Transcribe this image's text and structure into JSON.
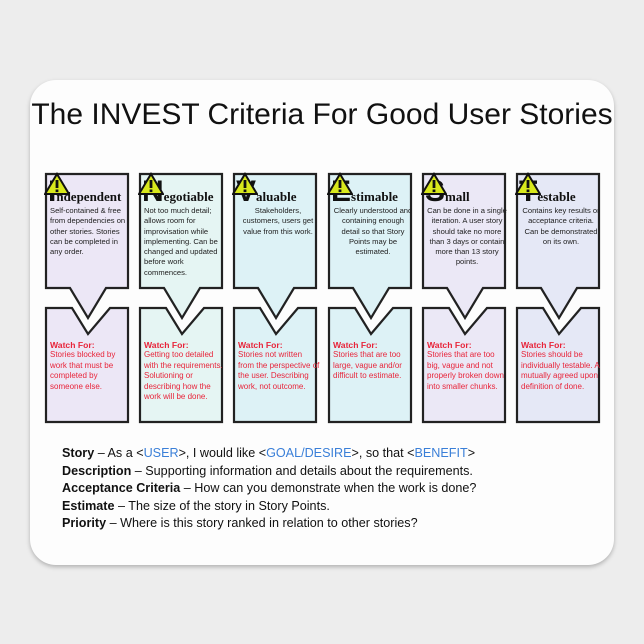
{
  "title": "The INVEST Criteria For Good User Stories",
  "criteria": [
    {
      "letter": "I",
      "rest": "ndependent",
      "color": "#ece7f6",
      "desc": "Self-contained & free from dependencies on other stories. Stories can be completed in any order.",
      "warn_label": "Watch For:",
      "warn": "Stories blocked by work that must be completed by someone else."
    },
    {
      "letter": "N",
      "rest": "egotiable",
      "color": "#e5f5f3",
      "desc": "Not too much detail; allows room for improvisation while implementing. Can be changed and updated before work commences.",
      "warn_label": "Watch For:",
      "warn": "Getting too detailed with the requirements. Solutioning or describing how the work will be done."
    },
    {
      "letter": "V",
      "rest": "aluable",
      "color": "#ddf2f6",
      "desc": "Stakeholders, customers, users get value from this work.",
      "warn_label": "Watch For:",
      "warn": "Stories not written from the perspective of the user.  Describing work, not outcome."
    },
    {
      "letter": "E",
      "rest": "stimable",
      "color": "#ddf2f6",
      "desc": "Clearly understood and containing enough detail so that Story Points may be estimated.",
      "warn_label": "Watch For:",
      "warn": "Stories that are too large, vague and/or difficult to estimate."
    },
    {
      "letter": "S",
      "rest": "mall",
      "color": "#ebe8f6",
      "desc": "Can be done in a single iteration. A user story should take no more than 3 days or contain more than 13 story points.",
      "warn_label": "Watch For:",
      "warn": "Stories that are too big, vague and not properly broken down into smaller chunks."
    },
    {
      "letter": "T",
      "rest": "estable",
      "color": "#e5e8f6",
      "desc": "Contains key results or acceptance criteria. Can be demonstrated on its own.",
      "warn_label": "Watch For:",
      "warn": "Stories should be individually testable.  A mutually agreed upon definition of done."
    }
  ],
  "definitions": {
    "story_term": "Story",
    "story_a": " – As a <",
    "story_user": "USER",
    "story_b": ">, I would like <",
    "story_goal": "GOAL/DESIRE",
    "story_c": ">, so that <",
    "story_benefit": "BENEFIT",
    "story_d": ">",
    "desc_term": "Description",
    "desc_text": " – Supporting information and details about the requirements.",
    "ac_term": "Acceptance Criteria",
    "ac_text": " – How can you demonstrate when the work is done?",
    "est_term": "Estimate",
    "est_text": " – The size of the story in Story Points.",
    "pri_term": "Priority",
    "pri_text": " – Where is this story ranked in relation to other stories?"
  },
  "colors": {
    "warning_text": "#e8243a",
    "placeholder_text": "#3a7fd8",
    "warning_icon": "#d8e81c"
  }
}
